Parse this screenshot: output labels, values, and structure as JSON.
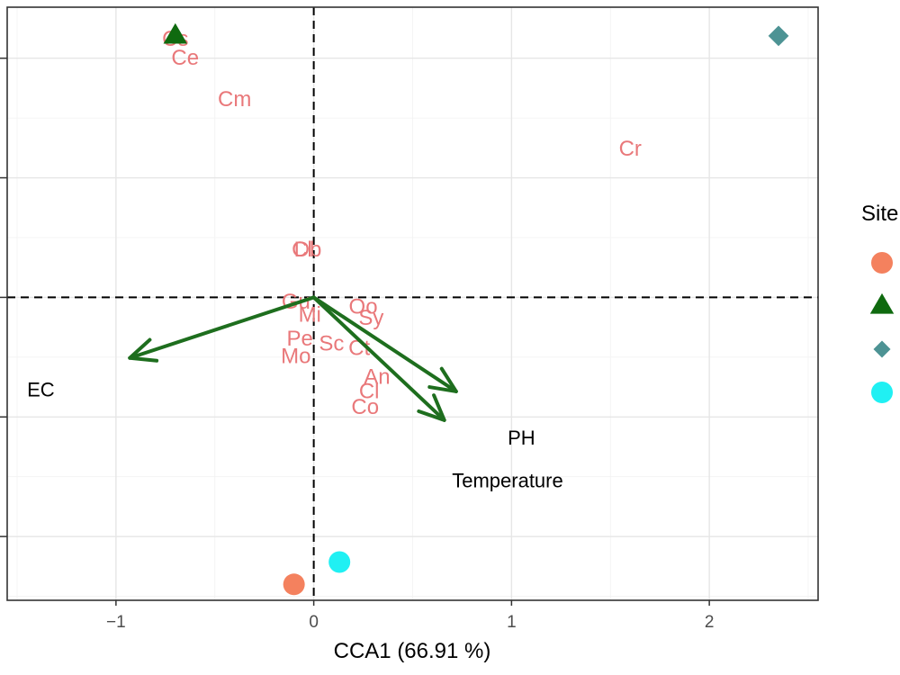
{
  "chart_data": {
    "type": "scatter",
    "subtype": "CCA ordination biplot",
    "xlabel": "CCA1 (66.91 %)",
    "ylabel": "",
    "xlim": [
      -1.55,
      2.55
    ],
    "ylim": [
      -1.9,
      1.82
    ],
    "x_ticks": [
      -1,
      0,
      1,
      2
    ],
    "x_tick_labels": [
      "−1",
      "0",
      "1",
      "2"
    ],
    "y_ticks": [
      -1.5,
      -0.75,
      0.0,
      0.75,
      1.5
    ],
    "y_tick_labels": [],
    "grid": true,
    "zero_lines": "dashed",
    "legend_title": "Site",
    "legend_placement": "right",
    "sites": [
      {
        "shape": "circle",
        "color": "#f4815e",
        "x": -0.1,
        "y": -1.8
      },
      {
        "shape": "triangle",
        "color": "#0f6a0f",
        "x": -0.7,
        "y": 1.64
      },
      {
        "shape": "diamond",
        "color": "#4d9394",
        "x": 2.35,
        "y": 1.64
      },
      {
        "shape": "circle",
        "color": "#20f0f3",
        "x": 0.13,
        "y": -1.66
      }
    ],
    "species": [
      {
        "label": "Cs",
        "x": -0.7,
        "y": 1.62
      },
      {
        "label": "Ce",
        "x": -0.65,
        "y": 1.5
      },
      {
        "label": "Cm",
        "x": -0.4,
        "y": 1.24
      },
      {
        "label": "Cr",
        "x": 1.6,
        "y": 0.93
      },
      {
        "label": "Cl",
        "x": -0.06,
        "y": 0.3
      },
      {
        "label": "Db",
        "x": -0.03,
        "y": 0.3
      },
      {
        "label": "Gu",
        "x": -0.09,
        "y": -0.03
      },
      {
        "label": "Mi",
        "x": -0.02,
        "y": -0.11
      },
      {
        "label": "Oo",
        "x": 0.25,
        "y": -0.06
      },
      {
        "label": "Sy",
        "x": 0.29,
        "y": -0.13
      },
      {
        "label": "Pe",
        "x": -0.07,
        "y": -0.26
      },
      {
        "label": "Sc",
        "x": 0.09,
        "y": -0.29
      },
      {
        "label": "Ct",
        "x": 0.23,
        "y": -0.32
      },
      {
        "label": "Mo",
        "x": -0.09,
        "y": -0.37
      },
      {
        "label": "An",
        "x": 0.32,
        "y": -0.5
      },
      {
        "label": "Cl",
        "x": 0.28,
        "y": -0.59
      },
      {
        "label": "Co",
        "x": 0.26,
        "y": -0.69
      }
    ],
    "env_vectors": [
      {
        "label": "EC",
        "x": -0.93,
        "y": -0.38,
        "label_x": -1.38,
        "label_y": -0.58
      },
      {
        "label": "PH",
        "x": 0.72,
        "y": -0.59,
        "label_x": 1.05,
        "label_y": -0.88
      },
      {
        "label": "Temperature",
        "x": 0.66,
        "y": -0.77,
        "label_x": 0.98,
        "label_y": -1.15
      }
    ]
  }
}
